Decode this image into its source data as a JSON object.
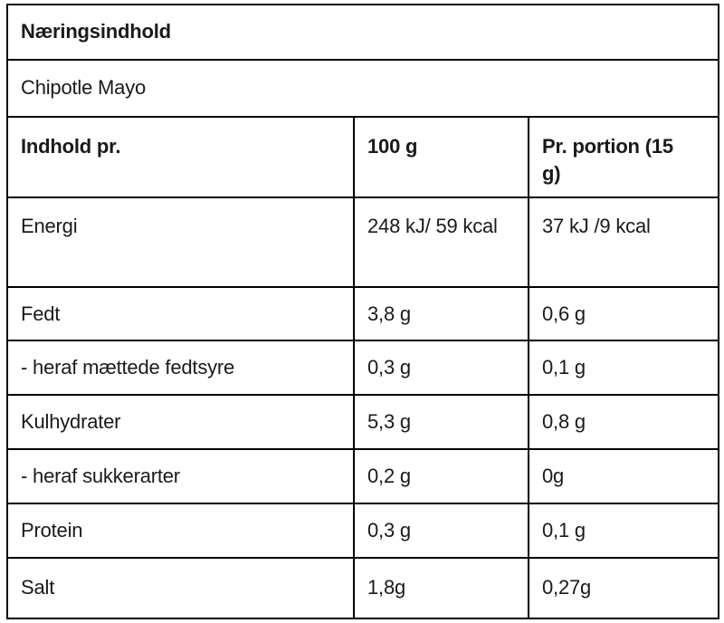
{
  "colors": {
    "background": "#ffffff",
    "border": "#000000",
    "text": "#1a1a1a"
  },
  "table": {
    "title": "Næringsindhold",
    "product": "Chipotle Mayo",
    "headers": [
      "Indhold pr.",
      "100 g",
      "Pr. portion (15 g)"
    ],
    "rows": [
      {
        "label": "Energi",
        "per100": "248 kJ/ 59 kcal",
        "portion": "37 kJ /9 kcal"
      },
      {
        "label": "Fedt",
        "per100": "3,8 g",
        "portion": "0,6 g"
      },
      {
        "label": "- heraf mættede fedtsyre",
        "per100": "0,3 g",
        "portion": "0,1 g"
      },
      {
        "label": "Kulhydrater",
        "per100": "5,3 g",
        "portion": "0,8 g"
      },
      {
        "label": "- heraf sukkerarter",
        "per100": "0,2 g",
        "portion": "0g"
      },
      {
        "label": "Protein",
        "per100": "0,3 g",
        "portion": "0,1 g"
      },
      {
        "label": "Salt",
        "per100": "1,8g",
        "portion": "0,27g"
      }
    ]
  }
}
